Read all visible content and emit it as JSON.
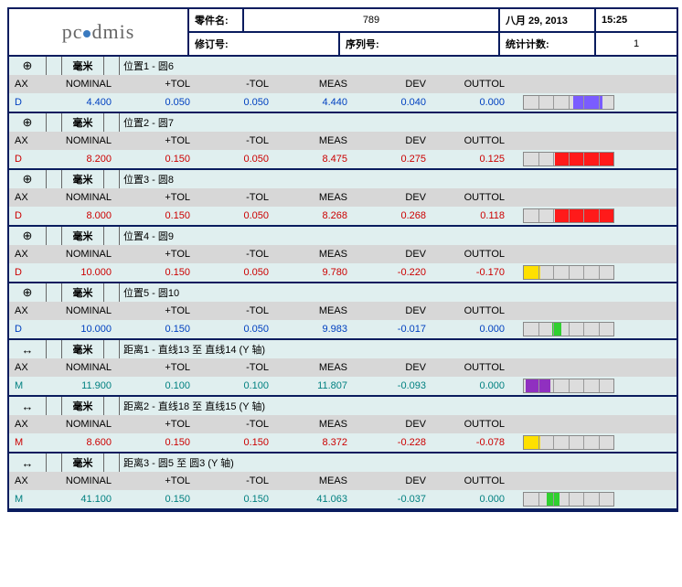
{
  "header": {
    "logo_text": "pc·dmis",
    "part_lbl": "零件名:",
    "part_val": "789",
    "date": "八月 29, 2013",
    "time": "15:25",
    "rev_lbl": "修订号:",
    "ser_lbl": "序列号:",
    "stat_lbl": "统计计数:",
    "stat_val": "1"
  },
  "col": {
    "ax": "AX",
    "nom": "NOMINAL",
    "ptol": "+TOL",
    "ntol": "-TOL",
    "meas": "MEAS",
    "dev": "DEV",
    "out": "OUTTOL"
  },
  "unit_mm": "毫米",
  "sections": [
    {
      "sym": "⊕",
      "title": "位置1 - 圆6",
      "ax": "D",
      "cls": "blue",
      "nom": "4.400",
      "ptol": "0.050",
      "ntol": "0.050",
      "meas": "4.440",
      "dev": "0.040",
      "out": "0.000",
      "gauge": {
        "color": "#7a5cff",
        "l": 55,
        "r": 88
      }
    },
    {
      "sym": "⊕",
      "title": "位置2 - 圆7",
      "ax": "D",
      "cls": "red",
      "nom": "8.200",
      "ptol": "0.150",
      "ntol": "0.050",
      "meas": "8.475",
      "dev": "0.275",
      "out": "0.125",
      "gauge": {
        "color": "#ff1a1a",
        "l": 35,
        "r": 100
      }
    },
    {
      "sym": "⊕",
      "title": "位置3 - 圆8",
      "ax": "D",
      "cls": "red",
      "nom": "8.000",
      "ptol": "0.150",
      "ntol": "0.050",
      "meas": "8.268",
      "dev": "0.268",
      "out": "0.118",
      "gauge": {
        "color": "#ff1a1a",
        "l": 35,
        "r": 100
      }
    },
    {
      "sym": "⊕",
      "title": "位置4 - 圆9",
      "ax": "D",
      "cls": "red",
      "nom": "10.000",
      "ptol": "0.150",
      "ntol": "0.050",
      "meas": "9.780",
      "dev": "-0.220",
      "out": "-0.170",
      "gauge": {
        "color": "#ffe000",
        "l": 0,
        "r": 18
      }
    },
    {
      "sym": "⊕",
      "title": "位置5 - 圆10",
      "ax": "D",
      "cls": "blue",
      "nom": "10.000",
      "ptol": "0.150",
      "ntol": "0.050",
      "meas": "9.983",
      "dev": "-0.017",
      "out": "0.000",
      "gauge": {
        "color": "#30d030",
        "l": 32,
        "r": 42
      }
    },
    {
      "sym": "↔",
      "title": "距离1 - 直线13 至 直线14 (Y 轴)",
      "ax": "M",
      "cls": "teal",
      "nom": "11.900",
      "ptol": "0.100",
      "ntol": "0.100",
      "meas": "11.807",
      "dev": "-0.093",
      "out": "0.000",
      "gauge": {
        "color": "#9030c0",
        "l": 2,
        "r": 30
      }
    },
    {
      "sym": "↔",
      "title": "距离2 - 直线18 至 直线15 (Y 轴)",
      "ax": "M",
      "cls": "red",
      "nom": "8.600",
      "ptol": "0.150",
      "ntol": "0.150",
      "meas": "8.372",
      "dev": "-0.228",
      "out": "-0.078",
      "gauge": {
        "color": "#ffe000",
        "l": 0,
        "r": 18
      }
    },
    {
      "sym": "↔",
      "title": "距离3 - 圆5 至 圆3 (Y 轴)",
      "ax": "M",
      "cls": "teal",
      "nom": "41.100",
      "ptol": "0.150",
      "ntol": "0.150",
      "meas": "41.063",
      "dev": "-0.037",
      "out": "0.000",
      "gauge": {
        "color": "#30d030",
        "l": 26,
        "r": 40
      }
    }
  ]
}
